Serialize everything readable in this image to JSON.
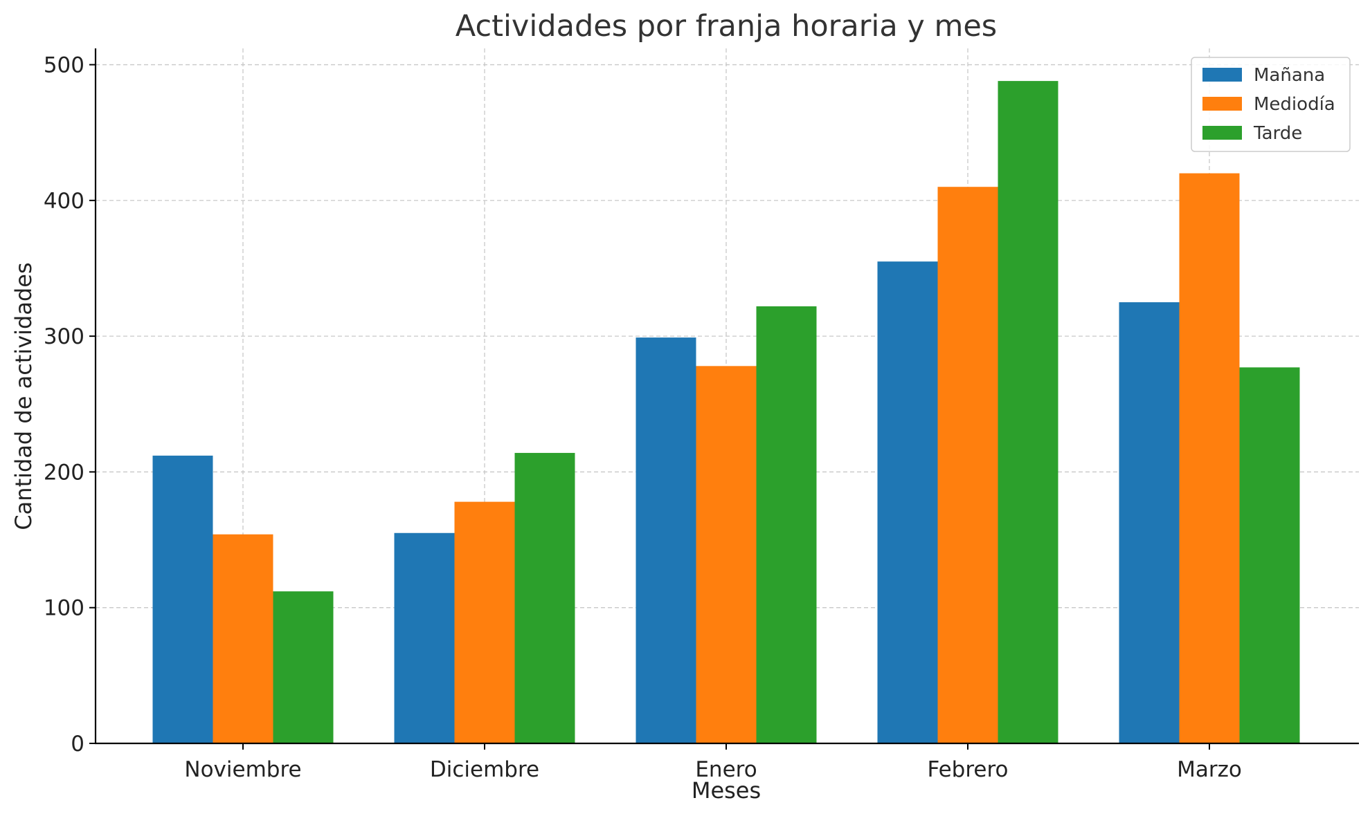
{
  "chart_data": {
    "type": "bar",
    "title": "Actividades por franja horaria y mes",
    "xlabel": "Meses",
    "ylabel": "Cantidad de actividades",
    "categories": [
      "Noviembre",
      "Diciembre",
      "Enero",
      "Febrero",
      "Marzo"
    ],
    "series": [
      {
        "name": "Mañana",
        "color": "#1f77b4",
        "values": [
          212,
          155,
          299,
          355,
          325
        ]
      },
      {
        "name": "Mediodía",
        "color": "#ff7f0e",
        "values": [
          154,
          178,
          278,
          410,
          420
        ]
      },
      {
        "name": "Tarde",
        "color": "#2ca02c",
        "values": [
          112,
          214,
          322,
          488,
          277
        ]
      }
    ],
    "ylim": [
      0,
      512
    ],
    "yticks": [
      0,
      100,
      200,
      300,
      400,
      500
    ],
    "grid": true,
    "legend_position": "top-right"
  }
}
